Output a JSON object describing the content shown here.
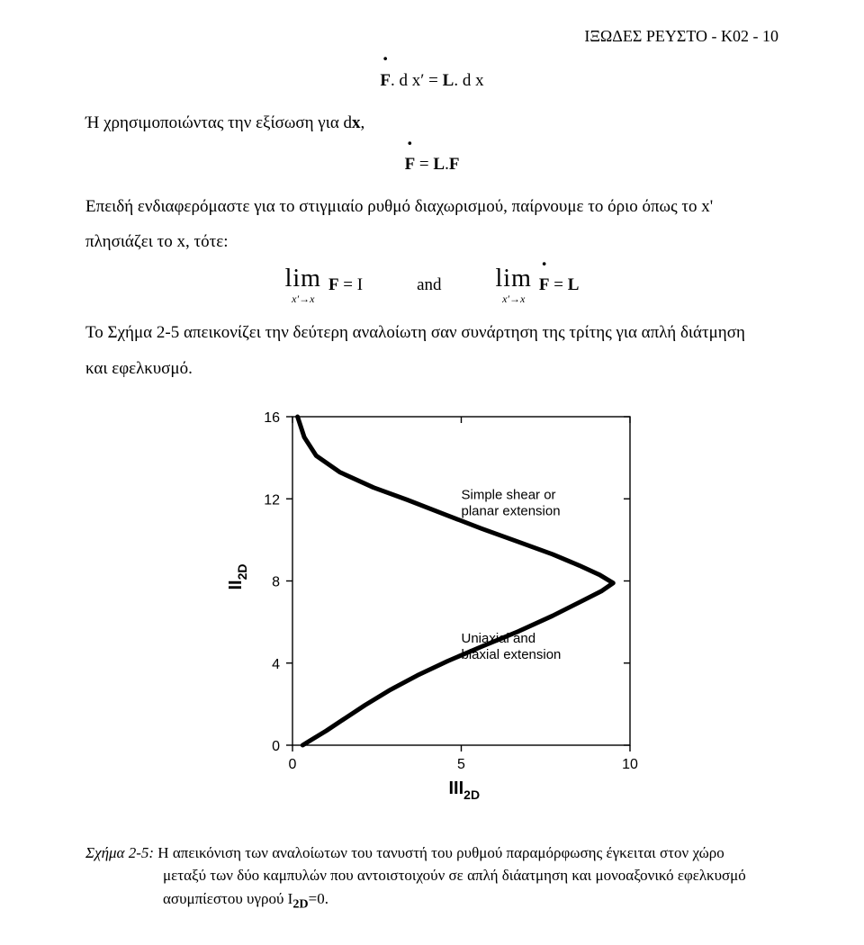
{
  "header": {
    "text": "ΙΞΩΔΕΣ  ΡΕΥΣΤΟ - K02 -     10"
  },
  "equation1": {
    "F_dot": "F",
    "eq": ". d x′  =  ",
    "L": "L",
    "rhs": ". d x"
  },
  "para1": "Ή χρησιμοποιώντας την εξίσωση για d",
  "para1_bold": "x",
  "para1_comma": ",",
  "equation2": {
    "F_dot": "F",
    "mid": "  =  ",
    "L": "L",
    "dot": ".",
    "F": "F"
  },
  "para2": "Επειδή ενδιαφερόμαστε για το στιγμιαίο ρυθμό διαχωρισμού, παίρνουμε το όριο όπως το x'",
  "para3": "πλησιάζει το x,  τότε:",
  "limrow": {
    "lim": "lim",
    "sub": "x′→x",
    "F": "F",
    "eq": " = ",
    "I": "I",
    "and": "and",
    "F_dot": "F",
    "L": "L"
  },
  "para4": "Το Σχήμα 2-5 απεικονίζει την δεύτερη αναλοίωτη σαν συνάρτηση της τρίτης για απλή διάτμηση",
  "para5": "και εφελκυσμό.",
  "chart": {
    "type": "line",
    "xlim": [
      0,
      10
    ],
    "ylim": [
      0,
      16
    ],
    "xtick_values": [
      0,
      5,
      10
    ],
    "ytick_values": [
      0,
      4,
      8,
      12,
      16
    ],
    "xtick_labels": [
      "0",
      "5",
      "10"
    ],
    "ytick_labels": [
      "0",
      "4",
      "8",
      "12",
      "16"
    ],
    "top_tick_positions": [
      0,
      5,
      10
    ],
    "right_tick_positions": [
      0,
      4,
      8,
      12,
      16
    ],
    "ylabel": "II",
    "ylabel_sub": "2D",
    "xlabel": "III",
    "xlabel_sub": "2D",
    "annotation_top": "Simple shear or\nplanar extension",
    "annotation_bottom": "Uniaxial and\nbiaxial extension",
    "curve_points": [
      [
        0.15,
        16.0
      ],
      [
        0.35,
        15.0
      ],
      [
        0.7,
        14.1
      ],
      [
        1.4,
        13.3
      ],
      [
        2.4,
        12.55
      ],
      [
        3.4,
        11.95
      ],
      [
        4.5,
        11.25
      ],
      [
        5.6,
        10.55
      ],
      [
        6.7,
        9.9
      ],
      [
        7.7,
        9.3
      ],
      [
        8.5,
        8.75
      ],
      [
        9.1,
        8.3
      ],
      [
        9.5,
        7.9
      ],
      [
        9.15,
        7.5
      ],
      [
        8.55,
        7.0
      ],
      [
        7.7,
        6.3
      ],
      [
        6.7,
        5.55
      ],
      [
        5.6,
        4.8
      ],
      [
        4.6,
        4.1
      ],
      [
        3.7,
        3.4
      ],
      [
        2.9,
        2.7
      ],
      [
        2.15,
        1.95
      ],
      [
        1.5,
        1.25
      ],
      [
        1.0,
        0.7
      ],
      [
        0.55,
        0.25
      ],
      [
        0.3,
        0.0
      ]
    ],
    "line_width": 5,
    "axis_color": "#000000",
    "curve_color": "#000000",
    "background_color": "#ffffff",
    "tick_fontsize": 16,
    "label_fontsize": 20,
    "annotation_fontsize": 15
  },
  "caption": {
    "line1_prefix": "Σχήμα 2-5:",
    "line1_rest": " Η απεικόνιση των αναλοίωτων του τανυστή του ρυθμού παραμόρφωσης έγκειται στον χώρο",
    "line2": "μεταξύ των δύο καμπυλών που αντοιστοιχούν σε απλή διάατμηση και μονοαξονικό εφελκυσμό",
    "line3a": "ασυμπίεστου υγρού I",
    "line3b": "2D",
    "line3c": "=0."
  }
}
